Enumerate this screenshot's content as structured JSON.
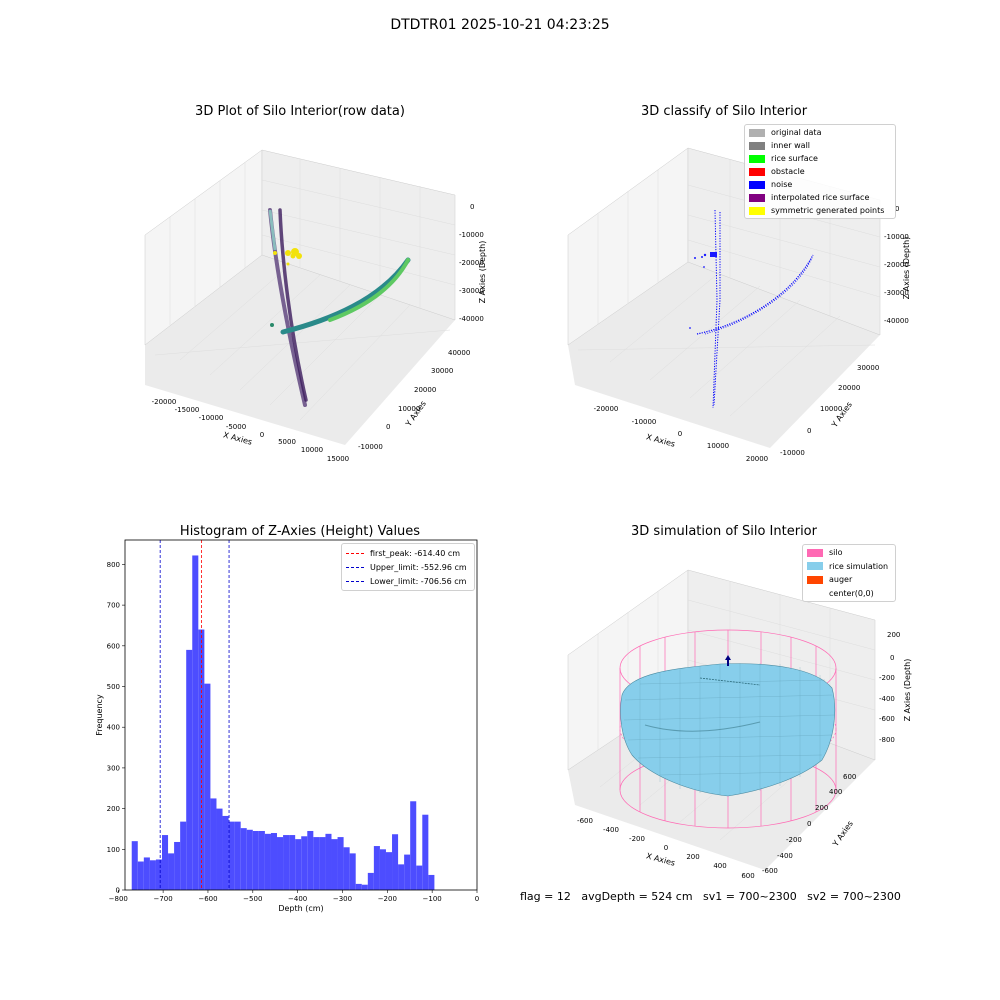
{
  "suptitle": "DTDTR01 2025-10-21 04:23:25",
  "footer": "flag = 12   avgDepth = 524 cm   sv1 = 700~2300   sv2 = 700~2300",
  "colors": {
    "bar": "#4d4dff",
    "peak_line": "#ff0000",
    "limit_line": "#0000cc",
    "silo": "#ff69b4",
    "rice": "#87ceeb",
    "auger": "#ff4500",
    "noise": "#0000ff"
  },
  "chart_data": [
    {
      "type": "scatter",
      "title": "3D Plot of Silo Interior(row data)",
      "xlabel": "X Axies",
      "ylabel": "Y Axies",
      "zlabel": "Z Axies (Depth)",
      "x_ticks": [
        "-20000",
        "-15000",
        "-10000",
        "-5000",
        "0",
        "5000",
        "10000",
        "15000"
      ],
      "y_ticks": [
        "-10000",
        "0",
        "10000",
        "20000",
        "30000",
        "40000"
      ],
      "z_ticks": [
        "0",
        "-10000",
        "-20000",
        "-30000",
        "-40000"
      ]
    },
    {
      "type": "scatter",
      "title": "3D classify of Silo Interior",
      "xlabel": "X Axies",
      "ylabel": "Y Axies",
      "zlabel": "Z Axies (Depth)",
      "x_ticks": [
        "-20000",
        "-10000",
        "0",
        "10000",
        "20000"
      ],
      "y_ticks": [
        "-10000",
        "0",
        "10000",
        "20000",
        "30000"
      ],
      "z_ticks": [
        "0",
        "-10000",
        "-20000",
        "-30000",
        "-40000"
      ],
      "legend": [
        {
          "label": "original data",
          "color": "#b0b0b0"
        },
        {
          "label": "inner wall",
          "color": "#808080"
        },
        {
          "label": "rice surface",
          "color": "#00ff00"
        },
        {
          "label": "obstacle",
          "color": "#ff0000"
        },
        {
          "label": "noise",
          "color": "#0000ff"
        },
        {
          "label": "interpolated rice surface",
          "color": "#800080"
        },
        {
          "label": "symmetric generated points",
          "color": "#ffff00"
        }
      ]
    },
    {
      "type": "bar",
      "title": "Histogram of Z-Axies (Height) Values",
      "xlabel": "Depth (cm)",
      "ylabel": "Frequency",
      "xlim": [
        -785,
        0
      ],
      "ylim": [
        0,
        860
      ],
      "x_ticks": [
        -800,
        -700,
        -600,
        -500,
        -400,
        -300,
        -200,
        -100,
        0
      ],
      "y_ticks": [
        0,
        100,
        200,
        300,
        400,
        500,
        600,
        700,
        800
      ],
      "bin_width": 13.5,
      "bin_start": -770,
      "values": [
        120,
        70,
        80,
        73,
        75,
        135,
        90,
        118,
        168,
        590,
        822,
        640,
        507,
        225,
        200,
        182,
        168,
        168,
        152,
        148,
        145,
        145,
        138,
        140,
        130,
        135,
        135,
        125,
        132,
        145,
        130,
        130,
        138,
        125,
        130,
        105,
        90,
        15,
        13,
        42,
        108,
        100,
        93,
        137,
        63,
        87,
        218,
        60,
        185,
        37
      ],
      "legend": [
        {
          "label": "first_peak: -614.40 cm",
          "value": -614.4,
          "color": "#ff0000"
        },
        {
          "label": "Upper_limit: -552.96 cm",
          "value": -552.96,
          "color": "#0000cc"
        },
        {
          "label": "Lower_limit: -706.56 cm",
          "value": -706.56,
          "color": "#0000cc"
        }
      ]
    },
    {
      "type": "surface",
      "title": "3D simulation of Silo Interior",
      "xlabel": "X Axies",
      "ylabel": "Y Axies",
      "zlabel": "Z Axies (Depth)",
      "x_ticks": [
        "-600",
        "-400",
        "-200",
        "0",
        "200",
        "400",
        "600"
      ],
      "y_ticks": [
        "-600",
        "-400",
        "-200",
        "0",
        "200",
        "400",
        "600"
      ],
      "z_ticks": [
        "200",
        "0",
        "-200",
        "-400",
        "-600",
        "-800"
      ],
      "legend": [
        {
          "label": "silo",
          "color": "#ff69b4"
        },
        {
          "label": "rice simulation",
          "color": "#87ceeb"
        },
        {
          "label": "auger",
          "color": "#ff4500"
        },
        {
          "label": "center(0,0)",
          "color": ""
        }
      ]
    }
  ]
}
